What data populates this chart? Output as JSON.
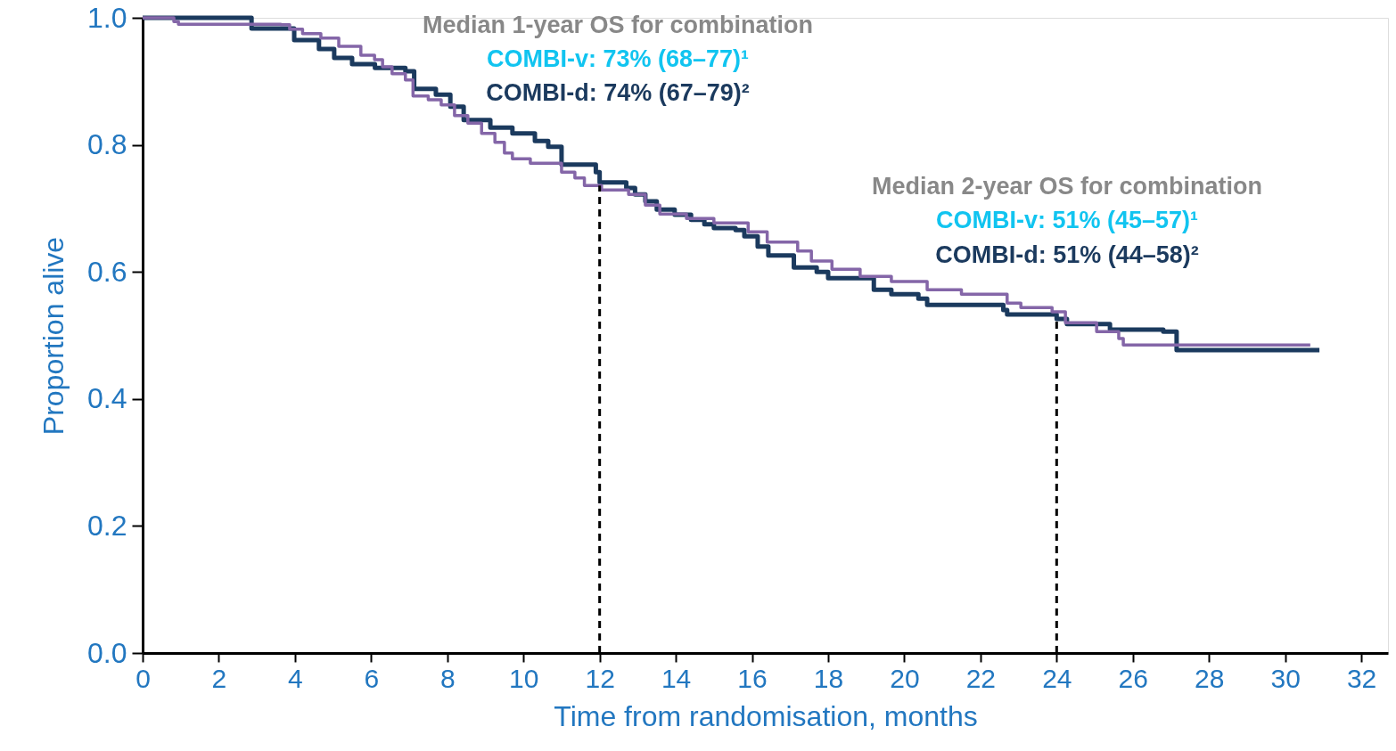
{
  "chart_data": {
    "type": "step",
    "xlabel": "Time from randomisation, months",
    "ylabel": "Proportion alive",
    "xlim": [
      0,
      32.7
    ],
    "xticks": [
      0,
      2,
      4,
      6,
      8,
      10,
      12,
      14,
      16,
      18,
      20,
      22,
      24,
      26,
      28,
      30,
      32
    ],
    "ylim": [
      0,
      1
    ],
    "yticks": [
      {
        "value": 0,
        "label": "0.0"
      },
      {
        "value": 0.2,
        "label": "0.2"
      },
      {
        "value": 0.4,
        "label": "0.4"
      },
      {
        "value": 0.6,
        "label": "0.6"
      },
      {
        "value": 0.8,
        "label": "0.8"
      },
      {
        "value": 1,
        "label": "1.0"
      }
    ],
    "grid": false,
    "marker": "none",
    "line_style": "solid",
    "series": [
      {
        "color": "#1b3a5e",
        "x": [
          0,
          2.86,
          3.98,
          4.63,
          5.03,
          5.5,
          6.1,
          6.9,
          7.13,
          7.7,
          8.08,
          8.43,
          9.13,
          9.71,
          10.3,
          10.65,
          11.0,
          11.9,
          12.0,
          12.7,
          12.93,
          13.2,
          13.5,
          13.97,
          14.4,
          14.75,
          15.0,
          15.57,
          15.8,
          16.15,
          16.43,
          17.1,
          17.7,
          18.0,
          19.2,
          19.66,
          20.37,
          20.6,
          22.6,
          22.7,
          24.0,
          24.27,
          25.4,
          26.8,
          27.15,
          30.9
        ],
        "values": [
          1.0,
          0.983,
          0.965,
          0.951,
          0.937,
          0.927,
          0.921,
          0.916,
          0.888,
          0.879,
          0.86,
          0.839,
          0.827,
          0.818,
          0.806,
          0.797,
          0.769,
          0.757,
          0.741,
          0.732,
          0.722,
          0.711,
          0.698,
          0.69,
          0.682,
          0.675,
          0.669,
          0.666,
          0.656,
          0.64,
          0.626,
          0.607,
          0.6,
          0.59,
          0.572,
          0.565,
          0.558,
          0.548,
          0.54,
          0.533,
          0.526,
          0.518,
          0.509,
          0.506,
          0.477,
          0.477
        ]
      },
      {
        "color": "#8466a8",
        "x": [
          0,
          0.82,
          0.94,
          3.63,
          3.86,
          4.2,
          4.68,
          5.15,
          5.73,
          6.09,
          6.3,
          6.55,
          6.9,
          7.1,
          7.5,
          7.84,
          8.19,
          8.54,
          8.9,
          9.25,
          9.5,
          9.71,
          10.18,
          11.0,
          11.35,
          11.6,
          12.05,
          12.76,
          13.2,
          13.58,
          14.28,
          15.0,
          15.9,
          16.4,
          17.2,
          17.56,
          18.1,
          18.84,
          19.66,
          20.6,
          21.5,
          22.7,
          23.06,
          23.88,
          24.23,
          25.05,
          25.63,
          25.75,
          30.66
        ],
        "values": [
          1.0,
          0.994,
          0.99,
          0.989,
          0.982,
          0.975,
          0.968,
          0.955,
          0.941,
          0.934,
          0.923,
          0.912,
          0.902,
          0.877,
          0.871,
          0.863,
          0.846,
          0.834,
          0.818,
          0.804,
          0.787,
          0.778,
          0.771,
          0.757,
          0.748,
          0.736,
          0.729,
          0.722,
          0.705,
          0.691,
          0.684,
          0.677,
          0.663,
          0.647,
          0.633,
          0.617,
          0.604,
          0.593,
          0.585,
          0.572,
          0.565,
          0.551,
          0.544,
          0.537,
          0.52,
          0.506,
          0.495,
          0.485,
          0.485
        ]
      }
    ],
    "ref_lines": [
      {
        "axis": "x",
        "value": 12,
        "line_style": "dashed",
        "color": "#000000"
      },
      {
        "axis": "x",
        "value": 24,
        "line_style": "dashed",
        "color": "#000000"
      }
    ],
    "annotations": [
      "Median 1-year OS for combination",
      "COMBI-v: 73% (68–77)¹",
      "COMBI-d: 74% (67–79)²",
      "Median 2-year OS for combination",
      "COMBI-v: 51% (45–57)¹",
      "COMBI-d: 51% (44–58)²"
    ]
  }
}
